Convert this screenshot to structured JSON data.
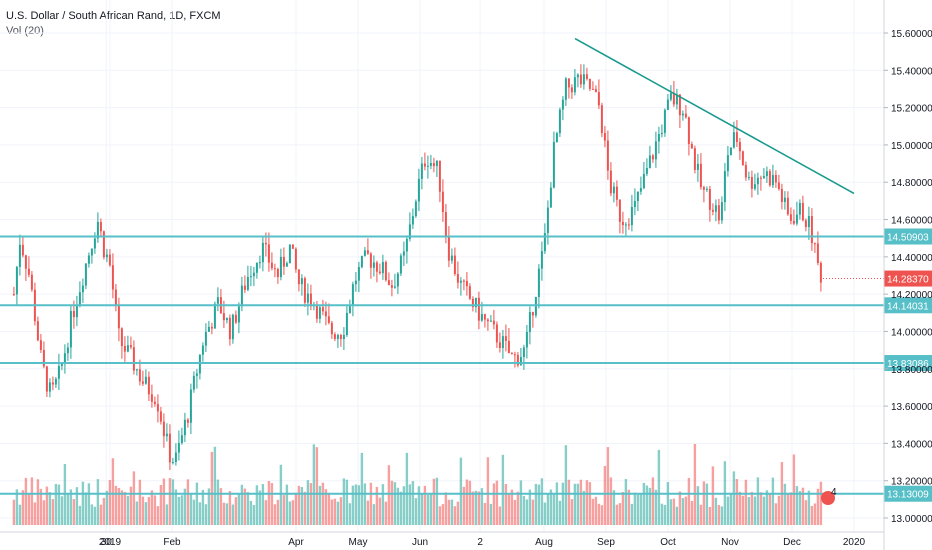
{
  "chart_data": {
    "type": "candlestick",
    "title": "U.S. Dollar / South African Rand, 1D, FXCM",
    "volume_label": "Vol (20)",
    "ylim": [
      13.0,
      15.7
    ],
    "y_ticks": [
      "15.60000",
      "15.40000",
      "15.20000",
      "15.00000",
      "14.80000",
      "14.60000",
      "14.40000",
      "14.20000",
      "14.00000",
      "13.80000",
      "13.60000",
      "13.40000",
      "13.20000",
      "13.00000"
    ],
    "x_ticks": [
      {
        "label": "30",
        "month": -0.06
      },
      {
        "label": "2019",
        "month": 0.0
      },
      {
        "label": "Feb",
        "month": 1.0
      },
      {
        "label": "Apr",
        "month": 3.0
      },
      {
        "label": "May",
        "month": 4.0
      },
      {
        "label": "Jun",
        "month": 5.0
      },
      {
        "label": "2",
        "month": 5.97
      },
      {
        "label": "Aug",
        "month": 7.0
      },
      {
        "label": "Sep",
        "month": 8.0
      },
      {
        "label": "Oct",
        "month": 9.0
      },
      {
        "label": "Nov",
        "month": 10.0
      },
      {
        "label": "Dec",
        "month": 11.0
      },
      {
        "label": "2020",
        "month": 12.0
      }
    ],
    "horizontal_levels": [
      {
        "value": 14.50903,
        "label": "14.50903"
      },
      {
        "value": 14.14031,
        "label": "14.14031"
      },
      {
        "value": 13.83086,
        "label": "13.83086"
      },
      {
        "value": 13.13009,
        "label": "13.13009"
      }
    ],
    "last_price": {
      "value": 14.2837,
      "label": "14.28370"
    },
    "trendline": {
      "start": {
        "month": 7.5,
        "value": 15.57
      },
      "end": {
        "month": 12.0,
        "value": 14.74
      }
    },
    "event_badge": "4",
    "ohlc_anchors": [
      {
        "month": -1.55,
        "value": 14.2
      },
      {
        "month": -1.45,
        "value": 14.5
      },
      {
        "month": -1.3,
        "value": 14.3
      },
      {
        "month": -1.1,
        "value": 13.82
      },
      {
        "month": -0.95,
        "value": 13.65
      },
      {
        "month": -0.8,
        "value": 13.78
      },
      {
        "month": -0.6,
        "value": 14.1
      },
      {
        "month": -0.4,
        "value": 14.35
      },
      {
        "month": -0.2,
        "value": 14.6
      },
      {
        "month": -0.1,
        "value": 14.45
      },
      {
        "month": 0.0,
        "value": 14.35
      },
      {
        "month": 0.15,
        "value": 13.95
      },
      {
        "month": 0.35,
        "value": 13.85
      },
      {
        "month": 0.55,
        "value": 13.72
      },
      {
        "month": 0.75,
        "value": 13.65
      },
      {
        "month": 0.95,
        "value": 13.35
      },
      {
        "month": 1.05,
        "value": 13.3
      },
      {
        "month": 1.25,
        "value": 13.55
      },
      {
        "month": 1.5,
        "value": 13.95
      },
      {
        "month": 1.75,
        "value": 14.15
      },
      {
        "month": 1.95,
        "value": 14.0
      },
      {
        "month": 2.2,
        "value": 14.28
      },
      {
        "month": 2.45,
        "value": 14.45
      },
      {
        "month": 2.7,
        "value": 14.3
      },
      {
        "month": 2.9,
        "value": 14.45
      },
      {
        "month": 3.05,
        "value": 14.25
      },
      {
        "month": 3.3,
        "value": 14.15
      },
      {
        "month": 3.55,
        "value": 14.0
      },
      {
        "month": 3.75,
        "value": 14.0
      },
      {
        "month": 3.95,
        "value": 14.28
      },
      {
        "month": 4.15,
        "value": 14.4
      },
      {
        "month": 4.35,
        "value": 14.35
      },
      {
        "month": 4.55,
        "value": 14.25
      },
      {
        "month": 4.75,
        "value": 14.4
      },
      {
        "month": 4.95,
        "value": 14.75
      },
      {
        "month": 5.1,
        "value": 14.95
      },
      {
        "month": 5.3,
        "value": 14.85
      },
      {
        "month": 5.45,
        "value": 14.45
      },
      {
        "month": 5.65,
        "value": 14.25
      },
      {
        "month": 5.85,
        "value": 14.15
      },
      {
        "month": 6.05,
        "value": 14.05
      },
      {
        "month": 6.3,
        "value": 13.95
      },
      {
        "month": 6.5,
        "value": 13.85
      },
      {
        "month": 6.7,
        "value": 13.9
      },
      {
        "month": 6.85,
        "value": 14.2
      },
      {
        "month": 7.0,
        "value": 14.45
      },
      {
        "month": 7.15,
        "value": 14.95
      },
      {
        "month": 7.35,
        "value": 15.3
      },
      {
        "month": 7.55,
        "value": 15.35
      },
      {
        "month": 7.75,
        "value": 15.3
      },
      {
        "month": 7.9,
        "value": 15.2
      },
      {
        "month": 8.05,
        "value": 14.8
      },
      {
        "month": 8.25,
        "value": 14.6
      },
      {
        "month": 8.45,
        "value": 14.65
      },
      {
        "month": 8.65,
        "value": 14.85
      },
      {
        "month": 8.85,
        "value": 15.05
      },
      {
        "month": 9.05,
        "value": 15.25
      },
      {
        "month": 9.25,
        "value": 15.2
      },
      {
        "month": 9.4,
        "value": 14.95
      },
      {
        "month": 9.55,
        "value": 14.75
      },
      {
        "month": 9.7,
        "value": 14.7
      },
      {
        "month": 9.85,
        "value": 14.6
      },
      {
        "month": 9.95,
        "value": 14.95
      },
      {
        "month": 10.1,
        "value": 15.05
      },
      {
        "month": 10.3,
        "value": 14.8
      },
      {
        "month": 10.55,
        "value": 14.85
      },
      {
        "month": 10.75,
        "value": 14.8
      },
      {
        "month": 10.95,
        "value": 14.6
      },
      {
        "month": 11.15,
        "value": 14.65
      },
      {
        "month": 11.3,
        "value": 14.55
      },
      {
        "month": 11.42,
        "value": 14.35
      },
      {
        "month": 11.5,
        "value": 14.28
      }
    ]
  }
}
